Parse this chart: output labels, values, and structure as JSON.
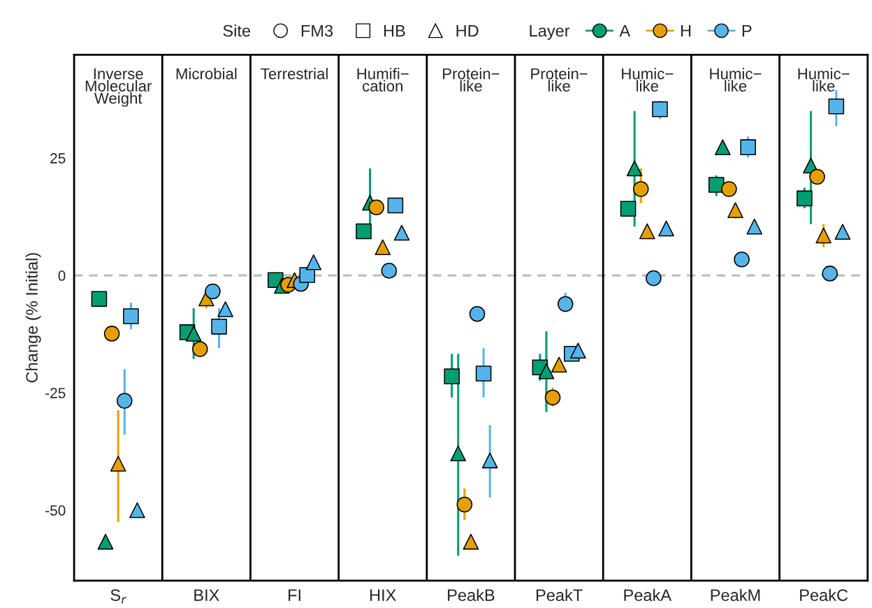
{
  "chart_data": {
    "type": "scatter",
    "ylabel": "Change (% Initial)",
    "categories": [
      "S$_{r}$",
      "BIX",
      "FI",
      "HIX",
      "PeakB",
      "PeakT",
      "PeakA",
      "PeakM",
      "PeakC"
    ],
    "annotations": [
      "Inverse\nMolecular\nWeight",
      "Microbial",
      "Terrestrial",
      "Humifi−\ncation",
      "Protein−\nlike",
      "Protein−\nlike",
      "Humic−\nlike",
      "Humic−\nlike",
      "Humic−\nlike",
      "Site",
      "FM3",
      "HB",
      "HD",
      "Layer",
      "A",
      "H",
      "P"
    ],
    "grid": false,
    "ylim": [
      -65,
      47
    ],
    "yticks": [
      -50,
      -25,
      0,
      25
    ],
    "ref_lines": [
      {
        "axis": "y",
        "value": 0,
        "color": "#bebebe",
        "line_style": "dashed"
      }
    ],
    "series": [
      {
        "marker": "square",
        "color": "#009e73",
        "values": [
          -5,
          -12.1,
          -1,
          9.4,
          -21.5,
          -19.6,
          14.2,
          19.3,
          16.4
        ],
        "errors": [
          null,
          null,
          null,
          null,
          [
            -26,
            -16.7
          ],
          [
            -22.4,
            -16.7
          ],
          null,
          [
            16.9,
            21.3
          ],
          [
            14.3,
            18.7
          ]
        ]
      },
      {
        "marker": "triangle",
        "color": "#009e73",
        "values": [
          -56.7,
          -12.4,
          -2.2,
          15.5,
          -37.9,
          -20.4,
          22.8,
          27.3,
          23.4
        ],
        "errors": [
          null,
          [
            -17.8,
            -7
          ],
          null,
          [
            7.9,
            22.8
          ],
          [
            -59.7,
            -16.7
          ],
          [
            -29.1,
            -11.9
          ],
          [
            10.4,
            35
          ],
          null,
          [
            10.9,
            35
          ]
        ]
      },
      {
        "marker": "circle",
        "color": "#e69f00",
        "values": [
          -12.4,
          -15.7,
          -2,
          14.5,
          -48.8,
          -26,
          18.4,
          18.4,
          21
        ],
        "errors": [
          null,
          null,
          null,
          null,
          [
            -52.1,
            -45.4
          ],
          [
            -27.9,
            -23.9
          ],
          [
            15.4,
            22.8
          ],
          null,
          null
        ]
      },
      {
        "marker": "triangle",
        "color": "#e69f00",
        "values": [
          -40.1,
          -4.9,
          -1,
          6,
          -56.7,
          -19,
          9.4,
          13.9,
          8.5
        ],
        "errors": [
          [
            -52.5,
            -28.7
          ],
          [
            -7,
            -3.3
          ],
          null,
          null,
          null,
          null,
          null,
          [
            12.1,
            15.4
          ],
          [
            6,
            10.9
          ]
        ]
      },
      {
        "marker": "circle",
        "color": "#56b4e9",
        "values": [
          -26.7,
          -3.4,
          -1.8,
          1,
          -8.2,
          -6.1,
          -0.6,
          3.4,
          0.4
        ],
        "errors": [
          [
            -33.9,
            -20
          ],
          null,
          null,
          null,
          null,
          [
            -7.6,
            -3.7
          ],
          null,
          null,
          null
        ]
      },
      {
        "marker": "square",
        "color": "#56b4e9",
        "values": [
          -8.7,
          -10.9,
          0.1,
          14.9,
          -20.9,
          -16.7,
          35.4,
          27.3,
          36
        ],
        "errors": [
          [
            -11.5,
            -5.8
          ],
          [
            -15.5,
            -7
          ],
          null,
          [
            13.4,
            16.6
          ],
          [
            -26,
            -15.5
          ],
          null,
          [
            33.3,
            37.2
          ],
          [
            25.1,
            29.6
          ],
          [
            31.8,
            39.5
          ]
        ]
      },
      {
        "marker": "triangle",
        "color": "#56b4e9",
        "values": [
          -50,
          -7.2,
          2.8,
          9.1,
          -39.4,
          -16,
          10,
          10.4,
          9.3
        ],
        "errors": [
          null,
          null,
          null,
          null,
          [
            -47.3,
            -31.9
          ],
          null,
          null,
          null,
          null
        ]
      }
    ]
  }
}
